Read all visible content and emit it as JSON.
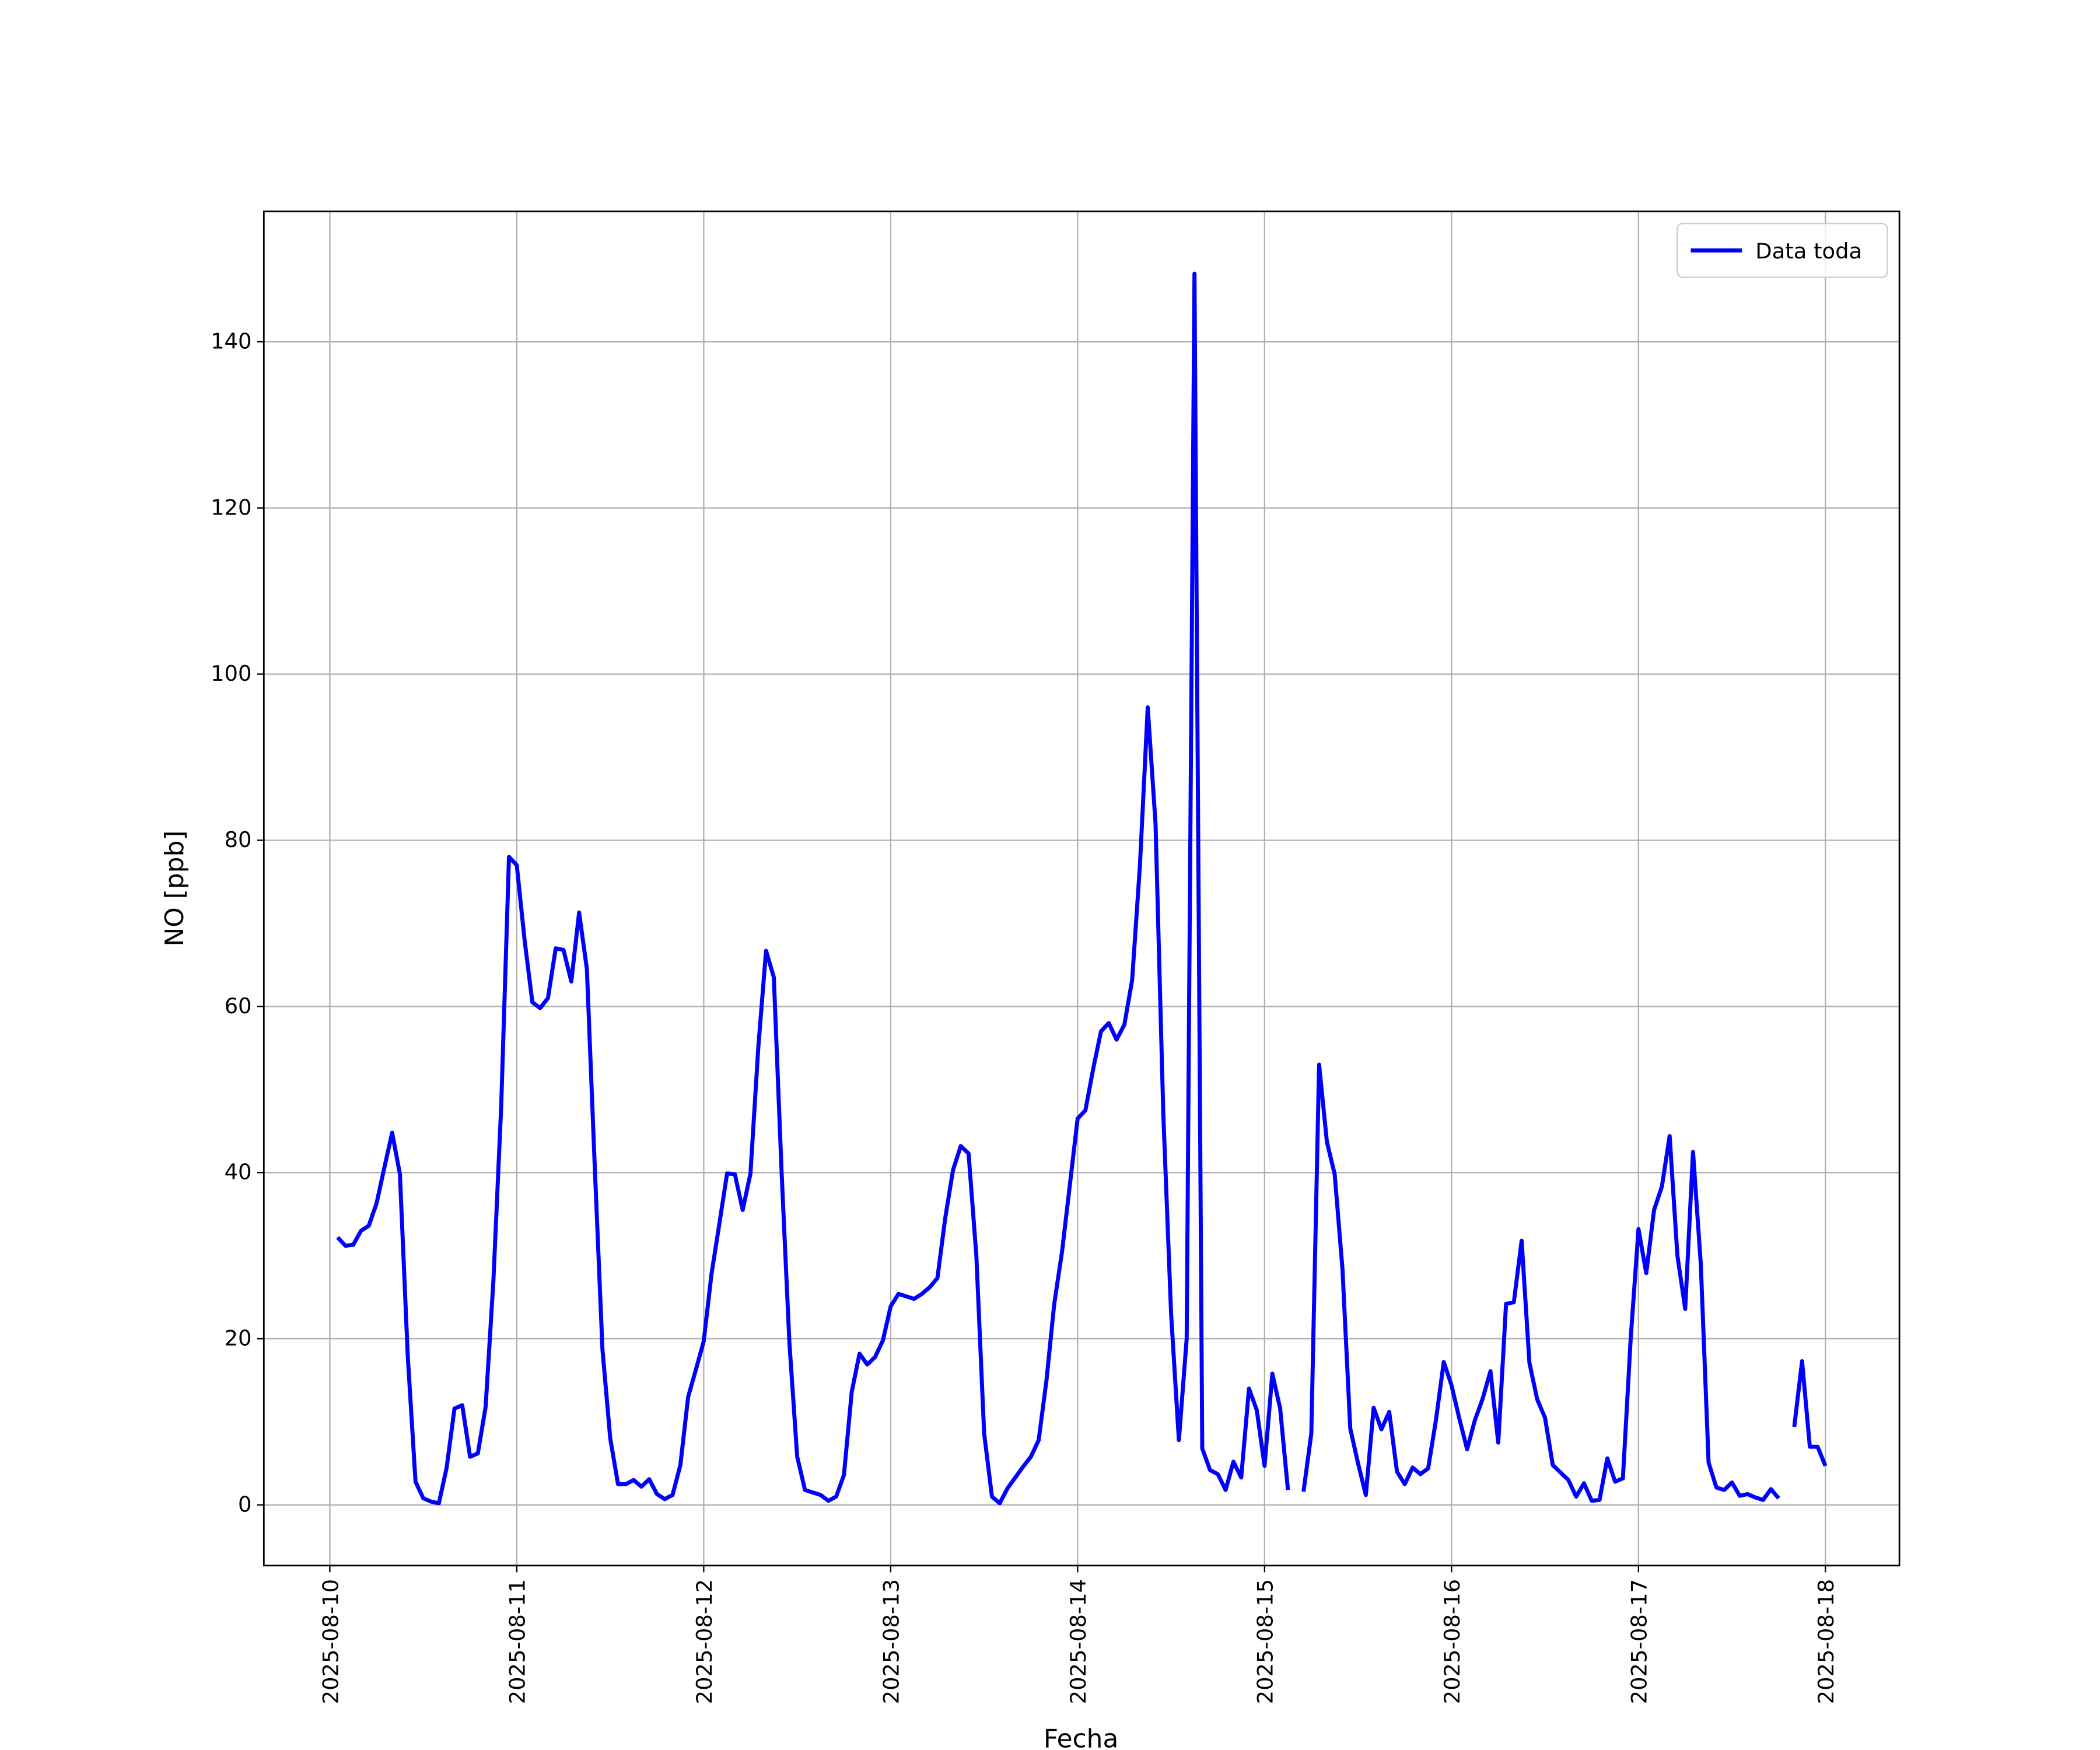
{
  "chart_data": {
    "type": "line",
    "xlabel": "Fecha",
    "ylabel": "NO [ppb]",
    "x": [
      1,
      2,
      3,
      4,
      5,
      6,
      7,
      8,
      9,
      10,
      11,
      12,
      13,
      14,
      15,
      16,
      17,
      18,
      19,
      20,
      21,
      22,
      23,
      24,
      25,
      26,
      27,
      28,
      29,
      30,
      31,
      32,
      33,
      34,
      35,
      36,
      37,
      38,
      39,
      40,
      41,
      42,
      43,
      44,
      45,
      46,
      47,
      48,
      49,
      50,
      51,
      52,
      53,
      54,
      55,
      56,
      57,
      58,
      59,
      60,
      61,
      62,
      63,
      64,
      65,
      66,
      67,
      68,
      69,
      70,
      71,
      72,
      73,
      74,
      75,
      76,
      77,
      78,
      79,
      80,
      81,
      82,
      83,
      84,
      85,
      86,
      87,
      88,
      89,
      90,
      91,
      92,
      93,
      94,
      95,
      96,
      97,
      98,
      99,
      100,
      101,
      102,
      103,
      104,
      105,
      106,
      107,
      108,
      109,
      110,
      111,
      112,
      113,
      114,
      115,
      116,
      117,
      118,
      119,
      120,
      121,
      122,
      123,
      124,
      125,
      126,
      127,
      128,
      129,
      130,
      131,
      132,
      133,
      134,
      135,
      136,
      137,
      138,
      139,
      140,
      141,
      142,
      143,
      144,
      145,
      146,
      147,
      148,
      149,
      150,
      151,
      152,
      153,
      154,
      155,
      156,
      157,
      158,
      159,
      160,
      161,
      162,
      163,
      164,
      165,
      166,
      167,
      168,
      169,
      170,
      171,
      172,
      173,
      174,
      175,
      176,
      177,
      178,
      179,
      180,
      181,
      182,
      183,
      184,
      185,
      186,
      187,
      188,
      189,
      190,
      191,
      192
    ],
    "series": [
      {
        "name": "Data toda",
        "color": "#0000ff",
        "values": [
          32.2,
          31.2,
          31.3,
          33,
          33.6,
          36.3,
          40.6,
          44.8,
          39.8,
          18,
          2.8,
          0.8,
          0.4,
          0.2,
          4.5,
          11.6,
          12,
          5.8,
          6.2,
          11.8,
          27,
          48,
          78,
          77,
          68,
          60.5,
          59.8,
          61,
          67,
          66.8,
          63,
          71.3,
          64.5,
          41,
          18.7,
          8,
          2.5,
          2.5,
          3,
          2.2,
          3.1,
          1.3,
          0.7,
          1.2,
          4.8,
          13,
          16.3,
          19.7,
          27.8,
          33.8,
          39.9,
          39.8,
          35.5,
          39.9,
          55,
          66.7,
          63.5,
          40,
          19.5,
          5.8,
          1.8,
          1.5,
          1.2,
          0.5,
          1,
          3.6,
          13.6,
          18.2,
          16.9,
          17.8,
          19.8,
          23.9,
          25.4,
          25.1,
          24.8,
          25.4,
          26.2,
          27.3,
          34.5,
          40.3,
          43.2,
          42.3,
          30,
          8.6,
          1,
          0.2,
          2,
          3.3,
          4.6,
          5.8,
          7.8,
          15,
          24.2,
          30.5,
          38.5,
          46.5,
          47.5,
          52.5,
          57,
          58,
          56,
          57.8,
          63.2,
          77,
          96,
          82,
          47,
          23,
          7.8,
          20,
          148.2,
          6.8,
          4.2,
          3.7,
          1.8,
          5.2,
          3.3,
          14,
          11.4,
          4.7,
          15.8,
          11.6,
          1.8,
          null,
          1.6,
          8.6,
          53,
          43.7,
          39.8,
          28.4,
          9.2,
          5,
          1.2,
          11.7,
          9.1,
          11.2,
          4,
          2.5,
          4.5,
          3.7,
          4.4,
          10.2,
          17.2,
          14.4,
          10.4,
          6.7,
          10.2,
          12.8,
          16.1,
          7.5,
          24.2,
          24.4,
          31.8,
          17.1,
          12.7,
          10.5,
          4.8,
          3.9,
          3,
          1,
          2.6,
          0.5,
          0.6,
          5.6,
          2.8,
          3.2,
          20,
          33.2,
          27.9,
          35.5,
          38.3,
          44.4,
          30,
          23.6,
          42.5,
          29,
          5.1,
          2.1,
          1.8,
          2.7,
          1.1,
          1.3,
          0.9,
          0.6,
          1.9,
          0.8,
          null,
          9.4,
          17.3,
          7,
          7,
          4.7
        ]
      }
    ],
    "xlim": [
      -8.47,
      201.5
    ],
    "xticks": [
      {
        "value": 0,
        "label": "2025-08-10"
      },
      {
        "value": 24,
        "label": "2025-08-11"
      },
      {
        "value": 48,
        "label": "2025-08-12"
      },
      {
        "value": 72,
        "label": "2025-08-13"
      },
      {
        "value": 96,
        "label": "2025-08-14"
      },
      {
        "value": 120,
        "label": "2025-08-15"
      },
      {
        "value": 144,
        "label": "2025-08-16"
      },
      {
        "value": 168,
        "label": "2025-08-17"
      },
      {
        "value": 192,
        "label": "2025-08-18"
      }
    ],
    "ylim": [
      -7.3,
      155.7
    ],
    "yticks": [
      0,
      20,
      40,
      60,
      80,
      100,
      120,
      140
    ],
    "grid": true,
    "legend": "upper right"
  }
}
